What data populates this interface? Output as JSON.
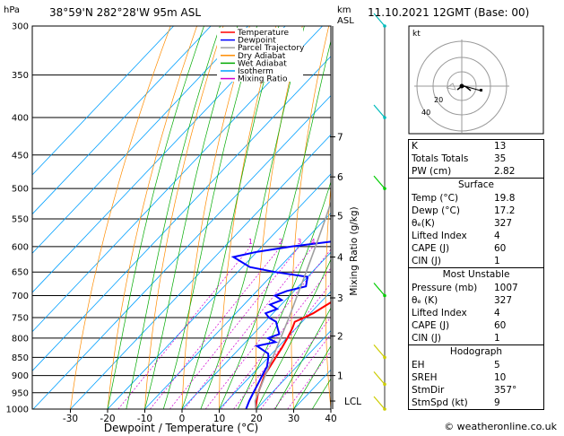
{
  "header": {
    "left_unit": "hPa",
    "location": "38°59'N 282°28'W 95m ASL",
    "km_label": "km",
    "asl_label": "ASL",
    "date": "11.10.2021 12GMT (Base: 00)"
  },
  "chart_data": {
    "type": "line",
    "title": "38°59'N 282°28'W 95m ASL",
    "xlabel": "Dewpoint / Temperature (°C)",
    "ylabel": "",
    "right_axis_label": "Mixing Ratio (g/kg)",
    "xlim": [
      -35,
      40
    ],
    "ylim_hpa": [
      1000,
      300
    ],
    "x_ticks": [
      -30,
      -20,
      -10,
      0,
      10,
      20,
      30,
      40
    ],
    "pressure_levels": [
      300,
      350,
      400,
      450,
      500,
      550,
      600,
      650,
      700,
      750,
      800,
      850,
      900,
      950,
      1000
    ],
    "km_ticks": [
      {
        "label": "1",
        "p": 900
      },
      {
        "label": "2",
        "p": 795
      },
      {
        "label": "3",
        "p": 705
      },
      {
        "label": "4",
        "p": 620
      },
      {
        "label": "5",
        "p": 545
      },
      {
        "label": "6",
        "p": 482
      },
      {
        "label": "7",
        "p": 425
      },
      {
        "label": "LCL",
        "p": 975
      }
    ],
    "mixing_ratio_labels": [
      "1",
      "2",
      "3",
      "4",
      "6",
      "8",
      "10",
      "16",
      "20",
      "25"
    ],
    "mixing_ratio_values": [
      1,
      2,
      3,
      4,
      6,
      8,
      10,
      16,
      20,
      25
    ],
    "legend": [
      {
        "name": "Temperature",
        "color": "#ff0000"
      },
      {
        "name": "Dewpoint",
        "color": "#0000ff"
      },
      {
        "name": "Parcel Trajectory",
        "color": "#a0a0a0"
      },
      {
        "name": "Dry Adiabat",
        "color": "#ff8c00"
      },
      {
        "name": "Wet Adiabat",
        "color": "#00aa00"
      },
      {
        "name": "Isotherm",
        "color": "#00a0ff"
      },
      {
        "name": "Mixing Ratio",
        "color": "#d000d0"
      }
    ],
    "legend_position": "top-left",
    "series": [
      {
        "name": "Temperature",
        "color": "#ff0000",
        "points": [
          [
            1000,
            19.8
          ],
          [
            975,
            18.0
          ],
          [
            950,
            16.3
          ],
          [
            925,
            15.0
          ],
          [
            900,
            13.6
          ],
          [
            875,
            12.8
          ],
          [
            850,
            12.0
          ],
          [
            825,
            11.2
          ],
          [
            800,
            10.2
          ],
          [
            775,
            9.0
          ],
          [
            760,
            8.0
          ],
          [
            750,
            9.5
          ],
          [
            740,
            10.8
          ],
          [
            725,
            12.0
          ],
          [
            710,
            13.2
          ],
          [
            700,
            12.0
          ],
          [
            650,
            9.0
          ],
          [
            600,
            6.0
          ],
          [
            550,
            2.0
          ],
          [
            500,
            -3.0
          ],
          [
            450,
            -9.5
          ],
          [
            400,
            -16.5
          ],
          [
            350,
            -25.0
          ],
          [
            300,
            -34.5
          ]
        ]
      },
      {
        "name": "Dewpoint",
        "color": "#0000ff",
        "points": [
          [
            1000,
            17.2
          ],
          [
            975,
            16.0
          ],
          [
            950,
            15.0
          ],
          [
            925,
            14.0
          ],
          [
            900,
            13.0
          ],
          [
            875,
            12.0
          ],
          [
            850,
            10.0
          ],
          [
            840,
            9.0
          ],
          [
            820,
            4.0
          ],
          [
            810,
            8.0
          ],
          [
            800,
            5.0
          ],
          [
            790,
            7.0
          ],
          [
            775,
            5.0
          ],
          [
            760,
            3.0
          ],
          [
            750,
            0.0
          ],
          [
            740,
            -2.0
          ],
          [
            730,
            0.0
          ],
          [
            720,
            -3.0
          ],
          [
            710,
            -1.0
          ],
          [
            700,
            -4.0
          ],
          [
            690,
            -2.0
          ],
          [
            680,
            2.0
          ],
          [
            660,
            0.0
          ],
          [
            650,
            -10.0
          ],
          [
            640,
            -18.0
          ],
          [
            620,
            -25.0
          ],
          [
            610,
            -20.0
          ],
          [
            600,
            -12.0
          ],
          [
            590,
            -2.0
          ],
          [
            575,
            -4.0
          ],
          [
            560,
            -6.0
          ],
          [
            550,
            -8.0
          ],
          [
            540,
            -7.0
          ],
          [
            530,
            -10.0
          ],
          [
            520,
            -8.0
          ],
          [
            500,
            -12.0
          ],
          [
            480,
            -14.0
          ],
          [
            450,
            -18.0
          ],
          [
            400,
            -26.0
          ],
          [
            350,
            -36.0
          ],
          [
            300,
            -47.0
          ]
        ]
      },
      {
        "name": "Parcel Trajectory",
        "color": "#a0a0a0",
        "points": [
          [
            1000,
            19.8
          ],
          [
            975,
            17.6
          ],
          [
            950,
            16.3
          ],
          [
            900,
            13.8
          ],
          [
            850,
            11.2
          ],
          [
            800,
            8.4
          ],
          [
            750,
            5.4
          ],
          [
            700,
            2.0
          ],
          [
            650,
            -1.6
          ],
          [
            600,
            -5.6
          ],
          [
            550,
            -10.0
          ],
          [
            500,
            -15.0
          ],
          [
            450,
            -20.8
          ],
          [
            400,
            -27.5
          ],
          [
            350,
            -35.5
          ],
          [
            300,
            -45.0
          ]
        ]
      }
    ]
  },
  "hodograph": {
    "label": "kt",
    "ring_labels": [
      "20",
      "40"
    ]
  },
  "indices": {
    "rows": [
      {
        "label": "K",
        "value": "13"
      },
      {
        "label": "Totals Totals",
        "value": "35"
      },
      {
        "label": "PW (cm)",
        "value": "2.82"
      }
    ],
    "surface": {
      "title": "Surface",
      "rows": [
        {
          "label": "Temp (°C)",
          "value": "19.8"
        },
        {
          "label": "Dewp (°C)",
          "value": "17.2"
        },
        {
          "label": "θₑ(K)",
          "value": "327"
        },
        {
          "label": "Lifted Index",
          "value": "4"
        },
        {
          "label": "CAPE (J)",
          "value": "60"
        },
        {
          "label": "CIN (J)",
          "value": "1"
        }
      ]
    },
    "most_unstable": {
      "title": "Most Unstable",
      "rows": [
        {
          "label": "Pressure (mb)",
          "value": "1007"
        },
        {
          "label": "θₑ (K)",
          "value": "327"
        },
        {
          "label": "Lifted Index",
          "value": "4"
        },
        {
          "label": "CAPE (J)",
          "value": "60"
        },
        {
          "label": "CIN (J)",
          "value": "1"
        }
      ]
    },
    "hodograph": {
      "title": "Hodograph",
      "rows": [
        {
          "label": "EH",
          "value": "5"
        },
        {
          "label": "SREH",
          "value": "10"
        },
        {
          "label": "StmDir",
          "value": "357°"
        },
        {
          "label": "StmSpd (kt)",
          "value": "9"
        }
      ]
    }
  },
  "footer": {
    "copyright": "© weatheronline.co.uk"
  }
}
